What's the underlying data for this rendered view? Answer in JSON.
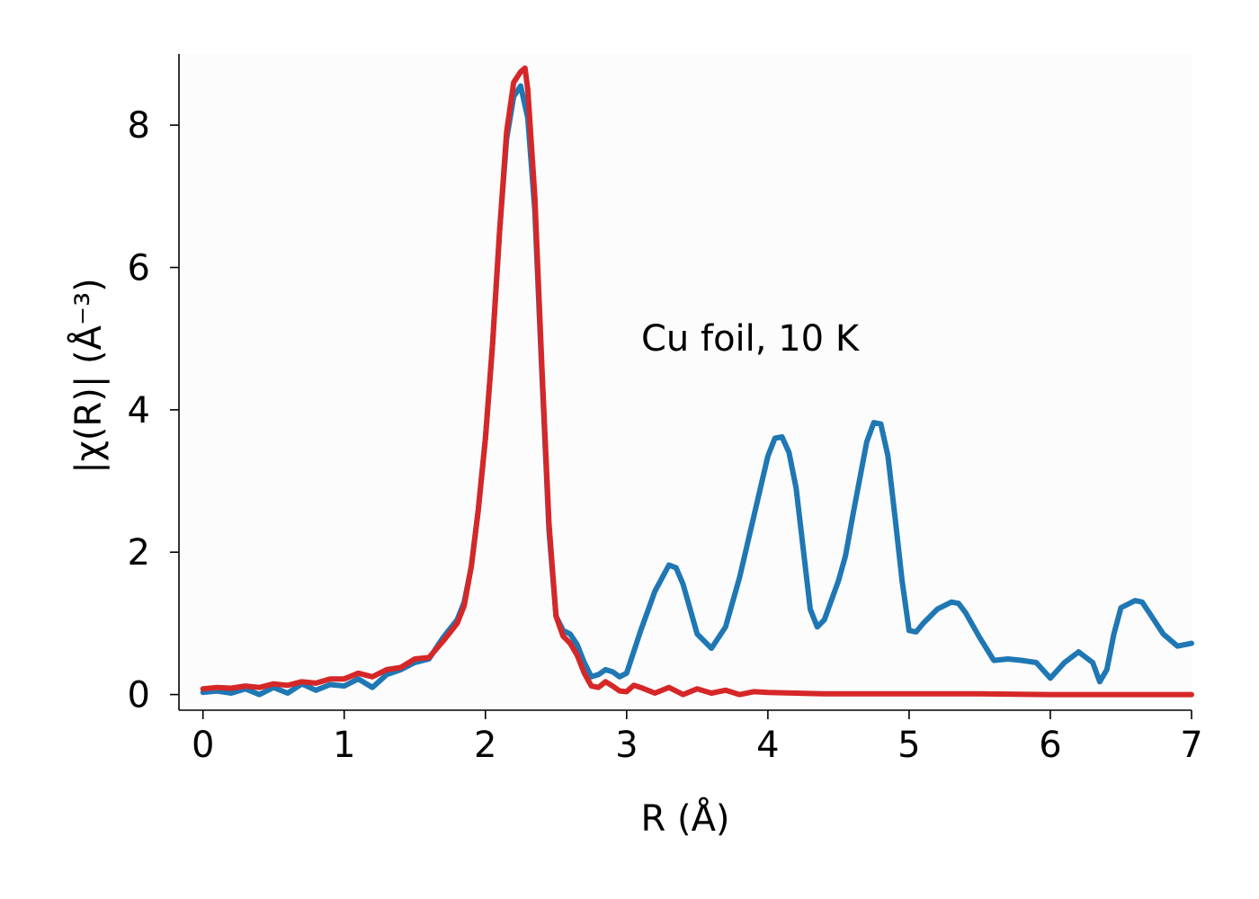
{
  "chart_data": {
    "type": "line",
    "xlabel": "R (Å)",
    "ylabel": "|χ(R)| (Å⁻³)",
    "annotation": "Cu foil, 10 K",
    "xlim": [
      -0.17,
      7
    ],
    "ylim": [
      -0.22,
      9.0
    ],
    "xticks": [
      0,
      1,
      2,
      3,
      4,
      5,
      6,
      7
    ],
    "yticks": [
      0,
      2,
      4,
      6,
      8
    ],
    "grid": false,
    "series": [
      {
        "color": "#1f77b4",
        "x": [
          0.0,
          0.1,
          0.2,
          0.3,
          0.4,
          0.5,
          0.6,
          0.7,
          0.8,
          0.9,
          1.0,
          1.1,
          1.2,
          1.3,
          1.4,
          1.5,
          1.6,
          1.7,
          1.8,
          1.85,
          1.9,
          1.95,
          2.0,
          2.05,
          2.1,
          2.15,
          2.2,
          2.25,
          2.3,
          2.35,
          2.4,
          2.45,
          2.5,
          2.55,
          2.6,
          2.65,
          2.7,
          2.75,
          2.8,
          2.85,
          2.9,
          2.95,
          3.0,
          3.1,
          3.2,
          3.3,
          3.35,
          3.4,
          3.5,
          3.6,
          3.7,
          3.8,
          3.9,
          4.0,
          4.05,
          4.1,
          4.15,
          4.2,
          4.3,
          4.35,
          4.4,
          4.5,
          4.55,
          4.6,
          4.7,
          4.75,
          4.8,
          4.85,
          4.9,
          4.95,
          5.0,
          5.05,
          5.1,
          5.2,
          5.3,
          5.35,
          5.4,
          5.5,
          5.6,
          5.7,
          5.8,
          5.9,
          6.0,
          6.1,
          6.2,
          6.3,
          6.35,
          6.4,
          6.45,
          6.5,
          6.6,
          6.65,
          6.7,
          6.8,
          6.9,
          7.0
        ],
        "y": [
          0.03,
          0.05,
          0.02,
          0.08,
          0.0,
          0.1,
          0.02,
          0.15,
          0.06,
          0.14,
          0.12,
          0.22,
          0.1,
          0.28,
          0.35,
          0.45,
          0.5,
          0.8,
          1.05,
          1.3,
          1.8,
          2.6,
          3.6,
          4.9,
          6.5,
          7.8,
          8.4,
          8.55,
          8.1,
          6.8,
          4.5,
          2.3,
          1.1,
          0.9,
          0.85,
          0.7,
          0.45,
          0.25,
          0.28,
          0.35,
          0.32,
          0.25,
          0.3,
          0.9,
          1.45,
          1.82,
          1.78,
          1.55,
          0.85,
          0.65,
          0.95,
          1.65,
          2.5,
          3.35,
          3.6,
          3.62,
          3.4,
          2.9,
          1.2,
          0.95,
          1.05,
          1.6,
          1.95,
          2.5,
          3.55,
          3.82,
          3.8,
          3.35,
          2.5,
          1.6,
          0.9,
          0.88,
          1.0,
          1.2,
          1.3,
          1.28,
          1.15,
          0.8,
          0.48,
          0.5,
          0.48,
          0.45,
          0.23,
          0.45,
          0.6,
          0.45,
          0.18,
          0.35,
          0.85,
          1.22,
          1.32,
          1.3,
          1.15,
          0.85,
          0.68,
          0.72
        ]
      },
      {
        "color": "#d62728",
        "x": [
          0.0,
          0.1,
          0.2,
          0.3,
          0.4,
          0.5,
          0.6,
          0.7,
          0.8,
          0.9,
          1.0,
          1.1,
          1.2,
          1.3,
          1.4,
          1.5,
          1.6,
          1.7,
          1.8,
          1.85,
          1.9,
          1.95,
          2.0,
          2.05,
          2.1,
          2.15,
          2.2,
          2.25,
          2.28,
          2.3,
          2.35,
          2.4,
          2.45,
          2.5,
          2.55,
          2.6,
          2.65,
          2.7,
          2.75,
          2.8,
          2.85,
          2.9,
          2.95,
          3.0,
          3.05,
          3.1,
          3.2,
          3.3,
          3.4,
          3.5,
          3.6,
          3.7,
          3.8,
          3.9,
          4.0,
          4.2,
          4.4,
          4.6,
          4.8,
          5.0,
          5.5,
          6.0,
          6.5,
          7.0
        ],
        "y": [
          0.08,
          0.1,
          0.09,
          0.12,
          0.1,
          0.15,
          0.13,
          0.18,
          0.16,
          0.22,
          0.22,
          0.3,
          0.25,
          0.35,
          0.38,
          0.5,
          0.52,
          0.75,
          1.0,
          1.25,
          1.8,
          2.6,
          3.6,
          4.9,
          6.5,
          7.9,
          8.6,
          8.75,
          8.8,
          8.5,
          7.0,
          4.6,
          2.4,
          1.1,
          0.82,
          0.72,
          0.55,
          0.3,
          0.12,
          0.1,
          0.18,
          0.12,
          0.05,
          0.04,
          0.13,
          0.1,
          0.02,
          0.1,
          0.0,
          0.08,
          0.02,
          0.06,
          0.0,
          0.04,
          0.03,
          0.02,
          0.01,
          0.01,
          0.01,
          0.01,
          0.01,
          0.0,
          0.0,
          0.0
        ]
      }
    ]
  }
}
